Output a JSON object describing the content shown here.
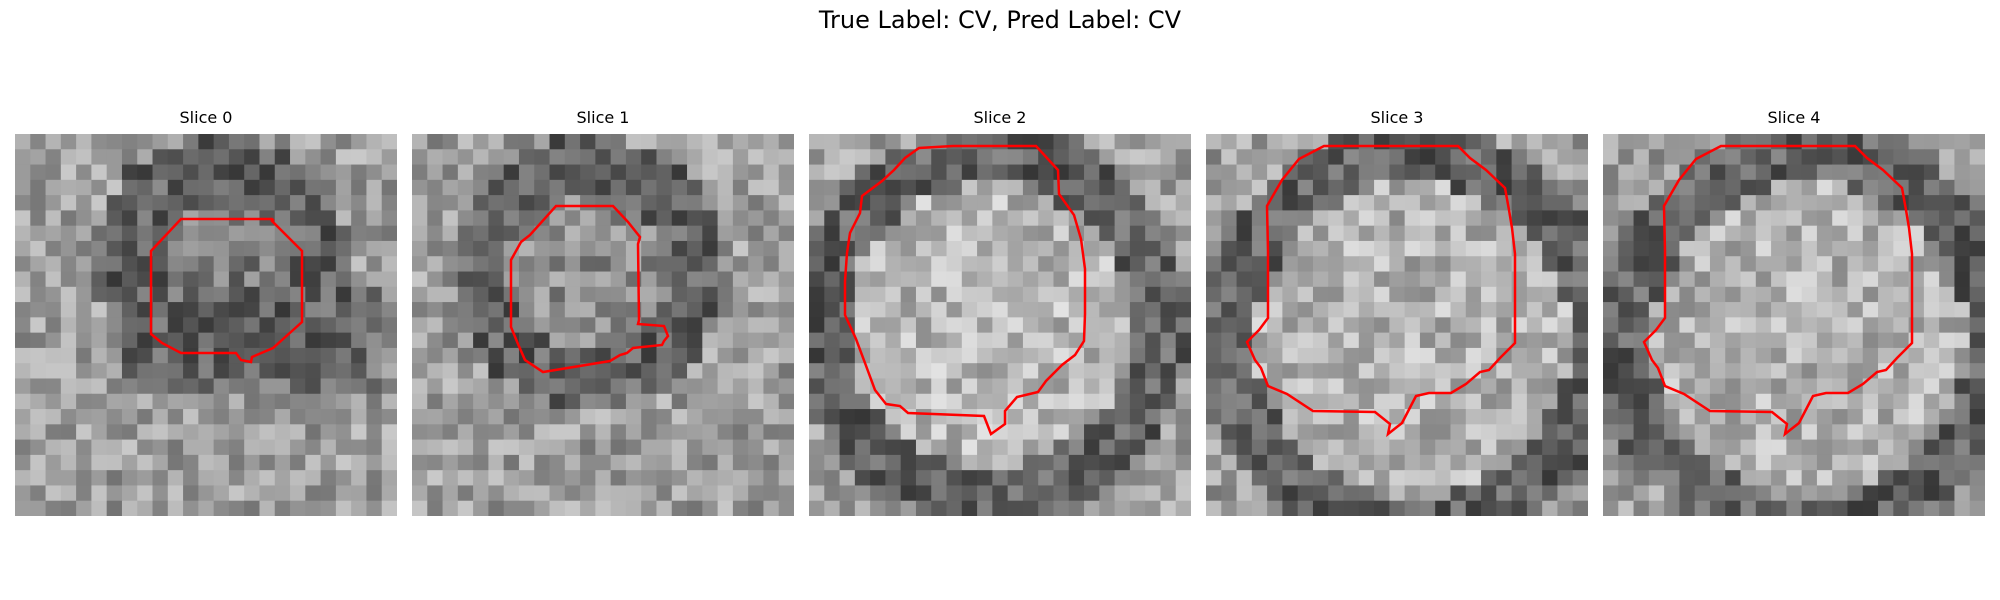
{
  "figure": {
    "title": "True Label: CV, Pred Label: CV"
  },
  "panels": [
    {
      "title": "Slice 0",
      "contour_color": "#ff0000"
    },
    {
      "title": "Slice 1",
      "contour_color": "#ff0000"
    },
    {
      "title": "Slice 2",
      "contour_color": "#ff0000"
    },
    {
      "title": "Slice 3",
      "contour_color": "#ff0000"
    },
    {
      "title": "Slice 4",
      "contour_color": "#ff0000"
    }
  ]
}
